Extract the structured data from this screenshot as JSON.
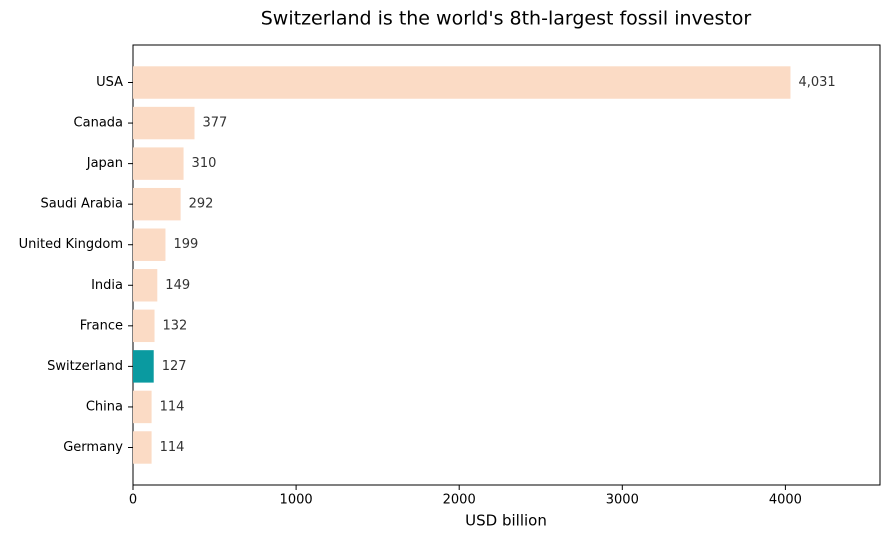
{
  "chart_data": {
    "type": "barh",
    "title": "Switzerland is the world's 8th-largest fossil investor",
    "xlabel": "USD billion",
    "categories": [
      "USA",
      "Canada",
      "Japan",
      "Saudi Arabia",
      "United Kingdom",
      "India",
      "France",
      "Switzerland",
      "China",
      "Germany"
    ],
    "values": [
      4031,
      377,
      310,
      292,
      199,
      149,
      132,
      127,
      114,
      114
    ],
    "value_labels": [
      "4,031",
      "377",
      "310",
      "292",
      "199",
      "149",
      "132",
      "127",
      "114",
      "114"
    ],
    "colors": [
      "#fbdbc5",
      "#fbdbc5",
      "#fbdbc5",
      "#fbdbc5",
      "#fbdbc5",
      "#fbdbc5",
      "#fbdbc5",
      "#0a9aa0",
      "#fbdbc5",
      "#fbdbc5"
    ],
    "xlim": [
      0,
      4580
    ],
    "xticks": [
      0,
      1000,
      2000,
      3000,
      4000
    ]
  }
}
